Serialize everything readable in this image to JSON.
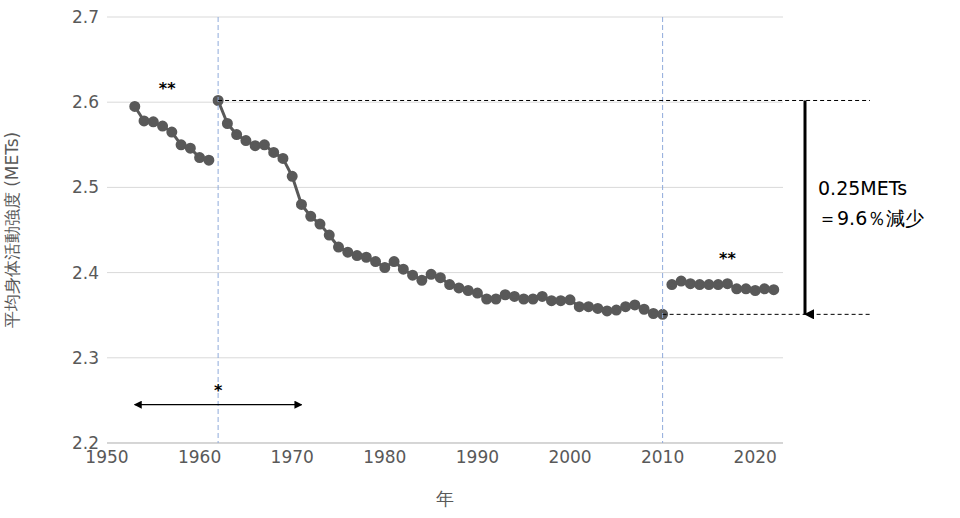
{
  "chart_data": {
    "type": "line",
    "x_label": "年",
    "y_label": "平均身体活動強度 (METs)",
    "xlim": [
      1950,
      2023
    ],
    "xticks": [
      1950,
      1960,
      1970,
      1980,
      1990,
      2000,
      2010,
      2020
    ],
    "ylim": [
      2.2,
      2.7
    ],
    "yticks": [
      2.2,
      2.3,
      2.4,
      2.5,
      2.6,
      2.7
    ],
    "grid": true,
    "series": [
      {
        "color": "#595959",
        "marker": "circle",
        "line_style": "solid",
        "x": [
          1953,
          1954,
          1955,
          1956,
          1957,
          1958,
          1959,
          1960,
          1961
        ],
        "values": [
          2.595,
          2.578,
          2.577,
          2.572,
          2.565,
          2.55,
          2.546,
          2.535,
          2.532
        ]
      },
      {
        "color": "#595959",
        "marker": "circle",
        "line_style": "solid",
        "x": [
          1962,
          1963,
          1964,
          1965,
          1966,
          1967,
          1968,
          1969,
          1970,
          1971,
          1972,
          1973,
          1974,
          1975,
          1976,
          1977,
          1978,
          1979,
          1980,
          1981,
          1982,
          1983,
          1984,
          1985,
          1986,
          1987,
          1988,
          1989,
          1990,
          1991,
          1992,
          1993,
          1994,
          1995,
          1996,
          1997,
          1998,
          1999,
          2000,
          2001,
          2002,
          2003,
          2004,
          2005,
          2006,
          2007,
          2008,
          2009,
          2010
        ],
        "values": [
          2.602,
          2.575,
          2.562,
          2.555,
          2.549,
          2.55,
          2.541,
          2.534,
          2.513,
          2.48,
          2.466,
          2.457,
          2.444,
          2.43,
          2.424,
          2.42,
          2.418,
          2.413,
          2.406,
          2.413,
          2.404,
          2.397,
          2.391,
          2.398,
          2.394,
          2.386,
          2.382,
          2.379,
          2.376,
          2.369,
          2.369,
          2.374,
          2.372,
          2.369,
          2.369,
          2.372,
          2.367,
          2.367,
          2.368,
          2.36,
          2.36,
          2.358,
          2.355,
          2.356,
          2.36,
          2.362,
          2.357,
          2.352,
          2.351
        ]
      },
      {
        "color": "#595959",
        "marker": "circle",
        "line_style": "solid",
        "x": [
          2011,
          2012,
          2013,
          2014,
          2015,
          2016,
          2017,
          2018,
          2019,
          2020,
          2021,
          2022
        ],
        "values": [
          2.386,
          2.39,
          2.387,
          2.386,
          2.386,
          2.386,
          2.387,
          2.381,
          2.381,
          2.379,
          2.381,
          2.38
        ]
      }
    ],
    "reference_lines": {
      "x": [
        1962,
        2010
      ],
      "color": "#8faadc"
    },
    "difference": {
      "from": 2.602,
      "to": 2.351,
      "text": [
        "0.25METs",
        "＝9.6％減少"
      ]
    },
    "annotations": [
      {
        "text": "**",
        "x": 1956.5,
        "y": 2.61
      },
      {
        "text": "**",
        "x": 2017,
        "y": 2.41
      },
      {
        "text": "*",
        "x": 1962,
        "y": 2.255
      }
    ],
    "range_arrow": {
      "x": [
        1953,
        1971
      ],
      "y": 2.245
    }
  }
}
